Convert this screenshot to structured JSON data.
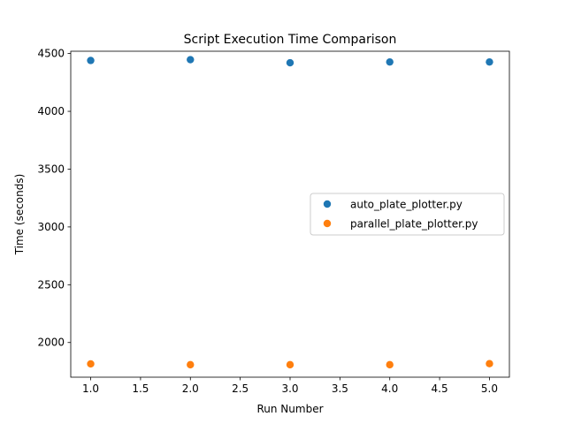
{
  "chart_data": {
    "type": "scatter",
    "title": "Script Execution Time Comparison",
    "xlabel": "Run Number",
    "ylabel": "Time (seconds)",
    "xlim": [
      0.8,
      5.2
    ],
    "ylim": [
      1700,
      4520
    ],
    "xticks": [
      1.0,
      1.5,
      2.0,
      2.5,
      3.0,
      3.5,
      4.0,
      4.5,
      5.0
    ],
    "xtick_labels": [
      "1.0",
      "1.5",
      "2.0",
      "2.5",
      "3.0",
      "3.5",
      "4.0",
      "4.5",
      "5.0"
    ],
    "yticks": [
      2000,
      2500,
      3000,
      3500,
      4000,
      4500
    ],
    "ytick_labels": [
      "2000",
      "2500",
      "3000",
      "3500",
      "4000",
      "4500"
    ],
    "grid": false,
    "legend_placement": "center-right",
    "series": [
      {
        "name": "auto_plate_plotter.py",
        "color": "#1f77b4",
        "x": [
          1,
          2,
          3,
          4,
          5
        ],
        "y": [
          4440,
          4447,
          4420,
          4427,
          4427
        ]
      },
      {
        "name": "parallel_plate_plotter.py",
        "color": "#ff7f0e",
        "x": [
          1,
          2,
          3,
          4,
          5
        ],
        "y": [
          1815,
          1808,
          1808,
          1808,
          1817
        ]
      }
    ]
  }
}
